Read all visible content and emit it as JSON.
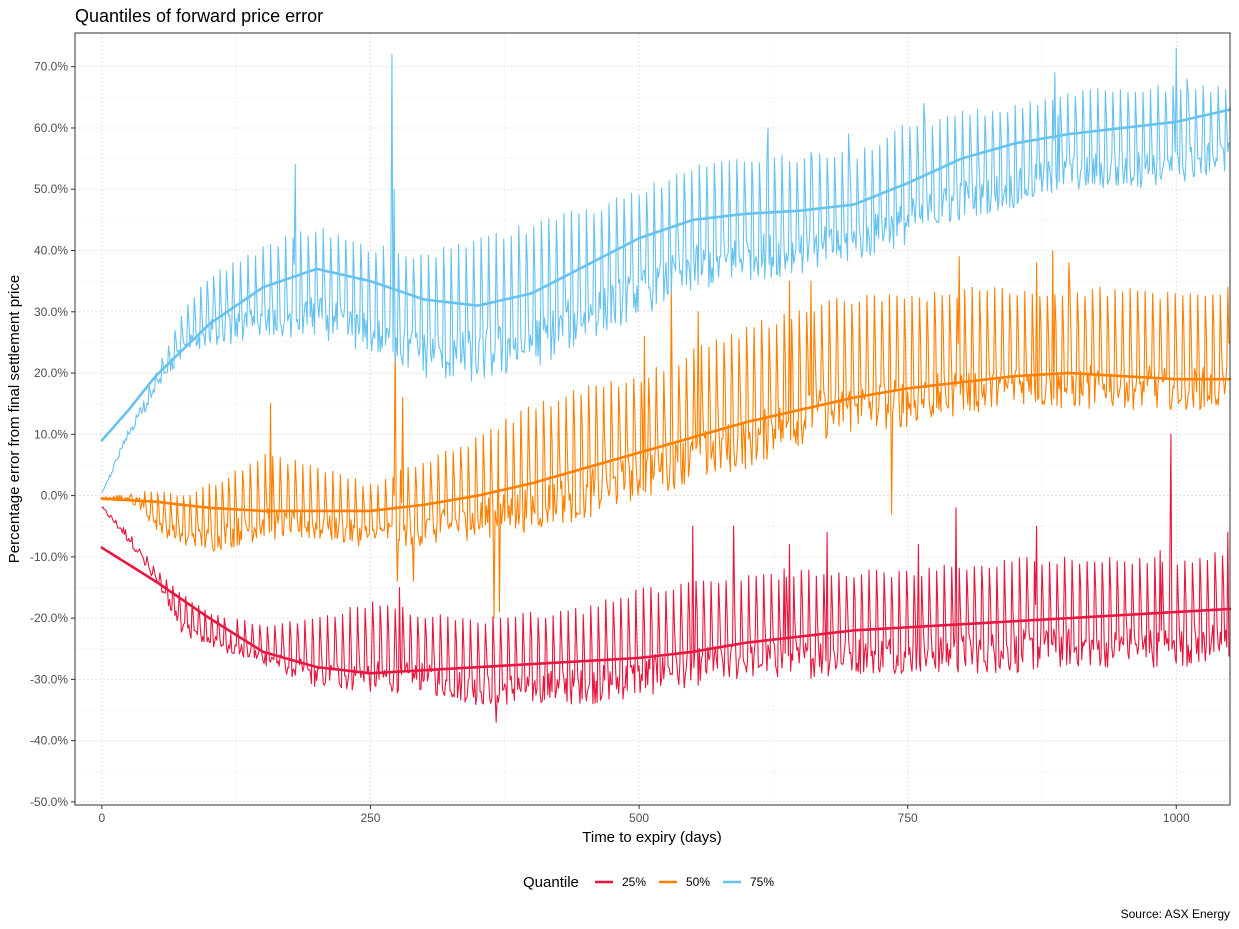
{
  "chart_data": {
    "type": "line",
    "title": "Quantiles of forward price error",
    "xlabel": "Time to expiry (days)",
    "ylabel": "Percentage error from final settlement price",
    "caption": "Source: ASX Energy",
    "xlim": [
      -25,
      1050
    ],
    "ylim": [
      -50.5,
      75.5
    ],
    "x_ticks": [
      0,
      250,
      500,
      750,
      1000
    ],
    "x_tick_labels": [
      "0",
      "250",
      "500",
      "750",
      "1000"
    ],
    "y_ticks": [
      -50,
      -40,
      -30,
      -20,
      -10,
      0,
      10,
      20,
      30,
      40,
      50,
      60,
      70
    ],
    "y_tick_labels": [
      "-50.0%",
      "-40.0%",
      "-30.0%",
      "-20.0%",
      "-10.0%",
      "0.0%",
      "10.0%",
      "20.0%",
      "30.0%",
      "40.0%",
      "50.0%",
      "60.0%",
      "70.0%"
    ],
    "grid": true,
    "legend": {
      "title": "Quantile",
      "position": "bottom"
    },
    "series": [
      {
        "name": "25%",
        "color": "#e8173f",
        "smooth": [
          [
            0,
            -8.5
          ],
          [
            50,
            -14
          ],
          [
            100,
            -20
          ],
          [
            150,
            -25.5
          ],
          [
            200,
            -28
          ],
          [
            250,
            -29
          ],
          [
            300,
            -28.5
          ],
          [
            350,
            -28
          ],
          [
            400,
            -27.5
          ],
          [
            450,
            -27
          ],
          [
            500,
            -26.5
          ],
          [
            550,
            -25.5
          ],
          [
            600,
            -24
          ],
          [
            650,
            -23
          ],
          [
            700,
            -22
          ],
          [
            750,
            -21.5
          ],
          [
            800,
            -21
          ],
          [
            850,
            -20.5
          ],
          [
            900,
            -20
          ],
          [
            950,
            -19.5
          ],
          [
            1000,
            -19
          ],
          [
            1050,
            -18.5
          ]
        ],
        "band": [
          [
            0,
            -1.5,
            -2.5
          ],
          [
            25,
            -5,
            -9
          ],
          [
            50,
            -12,
            -14
          ],
          [
            75,
            -16,
            -23
          ],
          [
            100,
            -19,
            -25
          ],
          [
            150,
            -21,
            -28
          ],
          [
            200,
            -20,
            -32
          ],
          [
            250,
            -17,
            -33
          ],
          [
            300,
            -19,
            -33
          ],
          [
            350,
            -20,
            -35
          ],
          [
            400,
            -19,
            -35
          ],
          [
            450,
            -18,
            -35
          ],
          [
            500,
            -15,
            -34
          ],
          [
            550,
            -14,
            -32
          ],
          [
            600,
            -13,
            -31
          ],
          [
            650,
            -12,
            -31
          ],
          [
            700,
            -12,
            -30
          ],
          [
            750,
            -12,
            -30
          ],
          [
            800,
            -11,
            -30
          ],
          [
            850,
            -10,
            -30
          ],
          [
            900,
            -10,
            -29
          ],
          [
            950,
            -10,
            -29
          ],
          [
            1000,
            -10,
            -29
          ],
          [
            1050,
            -9,
            -28
          ]
        ],
        "spikes": [
          [
            277,
            -15
          ],
          [
            367,
            -37
          ],
          [
            550,
            -5
          ],
          [
            588,
            -5
          ],
          [
            635,
            -12
          ],
          [
            640,
            -8
          ],
          [
            675,
            -6
          ],
          [
            760,
            -8
          ],
          [
            795,
            -2
          ],
          [
            870,
            -5
          ],
          [
            985,
            -9
          ],
          [
            995,
            10
          ],
          [
            1048,
            -6
          ]
        ]
      },
      {
        "name": "50%",
        "color": "#ff8000",
        "smooth": [
          [
            0,
            -0.5
          ],
          [
            50,
            -1
          ],
          [
            100,
            -2
          ],
          [
            150,
            -2.5
          ],
          [
            200,
            -2.5
          ],
          [
            250,
            -2.5
          ],
          [
            300,
            -1.5
          ],
          [
            350,
            0
          ],
          [
            400,
            2
          ],
          [
            450,
            4.5
          ],
          [
            500,
            7
          ],
          [
            550,
            9.5
          ],
          [
            600,
            12
          ],
          [
            650,
            14
          ],
          [
            700,
            16
          ],
          [
            750,
            17.5
          ],
          [
            800,
            18.5
          ],
          [
            850,
            19.5
          ],
          [
            900,
            20
          ],
          [
            950,
            19.5
          ],
          [
            1000,
            19
          ],
          [
            1050,
            19
          ]
        ],
        "band": [
          [
            0,
            0,
            -1
          ],
          [
            25,
            1,
            -2
          ],
          [
            50,
            1,
            -6
          ],
          [
            75,
            0,
            -9
          ],
          [
            100,
            2,
            -10
          ],
          [
            150,
            7,
            -8
          ],
          [
            200,
            5,
            -8
          ],
          [
            250,
            2,
            -9
          ],
          [
            300,
            6,
            -9
          ],
          [
            350,
            10,
            -8
          ],
          [
            400,
            15,
            -7
          ],
          [
            450,
            18,
            -5
          ],
          [
            500,
            20,
            -2
          ],
          [
            550,
            24,
            1
          ],
          [
            600,
            28,
            3
          ],
          [
            650,
            31,
            7
          ],
          [
            700,
            33,
            9
          ],
          [
            750,
            33,
            10
          ],
          [
            800,
            34,
            12
          ],
          [
            850,
            34,
            13
          ],
          [
            900,
            34,
            13
          ],
          [
            950,
            34,
            13
          ],
          [
            1000,
            33,
            13
          ],
          [
            1050,
            33,
            13
          ]
        ],
        "spikes": [
          [
            157,
            15
          ],
          [
            273,
            26
          ],
          [
            275,
            -14
          ],
          [
            280,
            16
          ],
          [
            290,
            -14
          ],
          [
            365,
            -20
          ],
          [
            370,
            -19
          ],
          [
            505,
            26
          ],
          [
            530,
            34
          ],
          [
            555,
            30
          ],
          [
            640,
            35
          ],
          [
            660,
            35
          ],
          [
            735,
            -3
          ],
          [
            798,
            39
          ],
          [
            870,
            38
          ],
          [
            885,
            40
          ],
          [
            900,
            38
          ],
          [
            1048,
            34
          ]
        ]
      },
      {
        "name": "75%",
        "color": "#66c2f0",
        "smooth": [
          [
            0,
            9
          ],
          [
            25,
            14
          ],
          [
            50,
            19.5
          ],
          [
            100,
            28
          ],
          [
            150,
            34
          ],
          [
            200,
            37
          ],
          [
            250,
            35
          ],
          [
            300,
            32
          ],
          [
            350,
            31
          ],
          [
            400,
            33
          ],
          [
            450,
            37.5
          ],
          [
            500,
            42
          ],
          [
            550,
            45
          ],
          [
            600,
            46
          ],
          [
            650,
            46.5
          ],
          [
            700,
            47.5
          ],
          [
            750,
            51
          ],
          [
            800,
            55
          ],
          [
            850,
            57.5
          ],
          [
            900,
            59
          ],
          [
            950,
            60
          ],
          [
            1000,
            61
          ],
          [
            1050,
            63
          ]
        ],
        "band": [
          [
            0,
            0.5,
            0
          ],
          [
            25,
            12,
            8
          ],
          [
            50,
            20,
            17
          ],
          [
            75,
            30,
            22
          ],
          [
            100,
            36,
            24
          ],
          [
            150,
            41,
            24
          ],
          [
            200,
            44,
            25
          ],
          [
            250,
            41,
            22
          ],
          [
            300,
            40,
            18
          ],
          [
            350,
            42,
            17
          ],
          [
            400,
            45,
            19
          ],
          [
            450,
            47,
            24
          ],
          [
            500,
            50,
            28
          ],
          [
            550,
            54,
            32
          ],
          [
            600,
            56,
            34
          ],
          [
            650,
            56,
            35
          ],
          [
            700,
            56,
            37
          ],
          [
            750,
            61,
            40
          ],
          [
            800,
            63,
            44
          ],
          [
            850,
            64,
            46
          ],
          [
            900,
            66,
            49
          ],
          [
            950,
            67,
            49
          ],
          [
            1000,
            67,
            50
          ],
          [
            1050,
            67,
            52
          ]
        ],
        "spikes": [
          [
            180,
            54
          ],
          [
            270,
            72
          ],
          [
            272,
            50
          ],
          [
            620,
            60
          ],
          [
            660,
            56
          ],
          [
            695,
            59
          ],
          [
            765,
            64
          ],
          [
            887,
            69
          ],
          [
            890,
            62
          ],
          [
            1000,
            73
          ],
          [
            1010,
            68
          ]
        ]
      }
    ]
  }
}
